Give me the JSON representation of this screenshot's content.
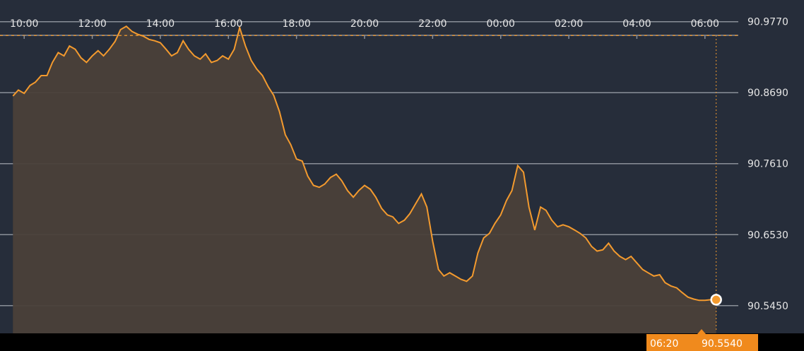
{
  "colors": {
    "background": "#262d3a",
    "bottom_bar": "#000000",
    "grid": "#8a8f98",
    "line": "#f39a2e",
    "area": "#4a4039",
    "reference": "#f39a2e",
    "tag_bg": "#f08a1d",
    "text": "#e6e6e6"
  },
  "chart_data": {
    "type": "area",
    "title": "",
    "xlabel": "",
    "ylabel": "",
    "x_tick_labels": [
      "10:00",
      "12:00",
      "14:00",
      "16:00",
      "18:00",
      "20:00",
      "22:00",
      "00:00",
      "02:00",
      "04:00",
      "06:00"
    ],
    "y_tick_labels": [
      "90.9770",
      "90.8690",
      "90.7610",
      "90.6530",
      "90.5450"
    ],
    "y_ticks": [
      90.977,
      90.869,
      90.761,
      90.653,
      90.545
    ],
    "ylim": [
      90.505,
      91.01
    ],
    "x_range_hours": [
      9.58,
      30.98
    ],
    "reference_level": 90.956,
    "current": {
      "time": "06:20",
      "value": "90.5540",
      "value_num": 90.554
    },
    "grid": true,
    "series": [
      {
        "points": [
          [
            9.67,
            90.864
          ],
          [
            9.83,
            90.873
          ],
          [
            10.0,
            90.868
          ],
          [
            10.17,
            90.88
          ],
          [
            10.33,
            90.885
          ],
          [
            10.5,
            90.895
          ],
          [
            10.67,
            90.895
          ],
          [
            10.83,
            90.915
          ],
          [
            11.0,
            90.93
          ],
          [
            11.17,
            90.925
          ],
          [
            11.33,
            90.94
          ],
          [
            11.5,
            90.935
          ],
          [
            11.67,
            90.922
          ],
          [
            11.83,
            90.915
          ],
          [
            12.0,
            90.925
          ],
          [
            12.17,
            90.933
          ],
          [
            12.33,
            90.925
          ],
          [
            12.5,
            90.935
          ],
          [
            12.67,
            90.947
          ],
          [
            12.83,
            90.965
          ],
          [
            13.0,
            90.97
          ],
          [
            13.17,
            90.962
          ],
          [
            13.33,
            90.958
          ],
          [
            13.5,
            90.955
          ],
          [
            13.67,
            90.95
          ],
          [
            13.83,
            90.948
          ],
          [
            14.0,
            90.945
          ],
          [
            14.17,
            90.935
          ],
          [
            14.33,
            90.925
          ],
          [
            14.5,
            90.93
          ],
          [
            14.67,
            90.948
          ],
          [
            14.83,
            90.935
          ],
          [
            15.0,
            90.925
          ],
          [
            15.17,
            90.92
          ],
          [
            15.33,
            90.928
          ],
          [
            15.5,
            90.915
          ],
          [
            15.67,
            90.918
          ],
          [
            15.83,
            90.925
          ],
          [
            16.0,
            90.92
          ],
          [
            16.17,
            90.935
          ],
          [
            16.33,
            90.968
          ],
          [
            16.5,
            90.94
          ],
          [
            16.67,
            90.918
          ],
          [
            16.83,
            90.905
          ],
          [
            17.0,
            90.895
          ],
          [
            17.17,
            90.878
          ],
          [
            17.33,
            90.865
          ],
          [
            17.5,
            90.84
          ],
          [
            17.67,
            90.805
          ],
          [
            17.83,
            90.79
          ],
          [
            18.0,
            90.768
          ],
          [
            18.17,
            90.765
          ],
          [
            18.33,
            90.742
          ],
          [
            18.5,
            90.728
          ],
          [
            18.67,
            90.725
          ],
          [
            18.83,
            90.73
          ],
          [
            19.0,
            90.74
          ],
          [
            19.17,
            90.745
          ],
          [
            19.33,
            90.735
          ],
          [
            19.5,
            90.72
          ],
          [
            19.67,
            90.71
          ],
          [
            19.83,
            90.72
          ],
          [
            20.0,
            90.728
          ],
          [
            20.17,
            90.722
          ],
          [
            20.33,
            90.71
          ],
          [
            20.5,
            90.693
          ],
          [
            20.67,
            90.683
          ],
          [
            20.83,
            90.68
          ],
          [
            21.0,
            90.67
          ],
          [
            21.17,
            90.675
          ],
          [
            21.33,
            90.685
          ],
          [
            21.5,
            90.7
          ],
          [
            21.67,
            90.715
          ],
          [
            21.83,
            90.695
          ],
          [
            22.0,
            90.643
          ],
          [
            22.17,
            90.6
          ],
          [
            22.33,
            90.59
          ],
          [
            22.5,
            90.595
          ],
          [
            22.67,
            90.59
          ],
          [
            22.83,
            90.585
          ],
          [
            23.0,
            90.582
          ],
          [
            23.17,
            90.59
          ],
          [
            23.33,
            90.625
          ],
          [
            23.5,
            90.648
          ],
          [
            23.67,
            90.655
          ],
          [
            23.83,
            90.67
          ],
          [
            24.0,
            90.683
          ],
          [
            24.17,
            90.705
          ],
          [
            24.33,
            90.72
          ],
          [
            24.5,
            90.758
          ],
          [
            24.67,
            90.748
          ],
          [
            24.83,
            90.695
          ],
          [
            25.0,
            90.66
          ],
          [
            25.17,
            90.695
          ],
          [
            25.33,
            90.69
          ],
          [
            25.5,
            90.675
          ],
          [
            25.67,
            90.665
          ],
          [
            25.83,
            90.668
          ],
          [
            26.0,
            90.665
          ],
          [
            26.17,
            90.66
          ],
          [
            26.33,
            90.655
          ],
          [
            26.5,
            90.648
          ],
          [
            26.67,
            90.635
          ],
          [
            26.83,
            90.628
          ],
          [
            27.0,
            90.63
          ],
          [
            27.17,
            90.64
          ],
          [
            27.33,
            90.628
          ],
          [
            27.5,
            90.62
          ],
          [
            27.67,
            90.615
          ],
          [
            27.83,
            90.62
          ],
          [
            28.0,
            90.61
          ],
          [
            28.17,
            90.6
          ],
          [
            28.33,
            90.595
          ],
          [
            28.5,
            90.59
          ],
          [
            28.67,
            90.592
          ],
          [
            28.83,
            90.58
          ],
          [
            29.0,
            90.575
          ],
          [
            29.17,
            90.572
          ],
          [
            29.33,
            90.565
          ],
          [
            29.5,
            90.558
          ],
          [
            29.67,
            90.555
          ],
          [
            29.83,
            90.553
          ],
          [
            30.0,
            90.553
          ],
          [
            30.17,
            90.554
          ],
          [
            30.33,
            90.554
          ]
        ]
      }
    ]
  }
}
